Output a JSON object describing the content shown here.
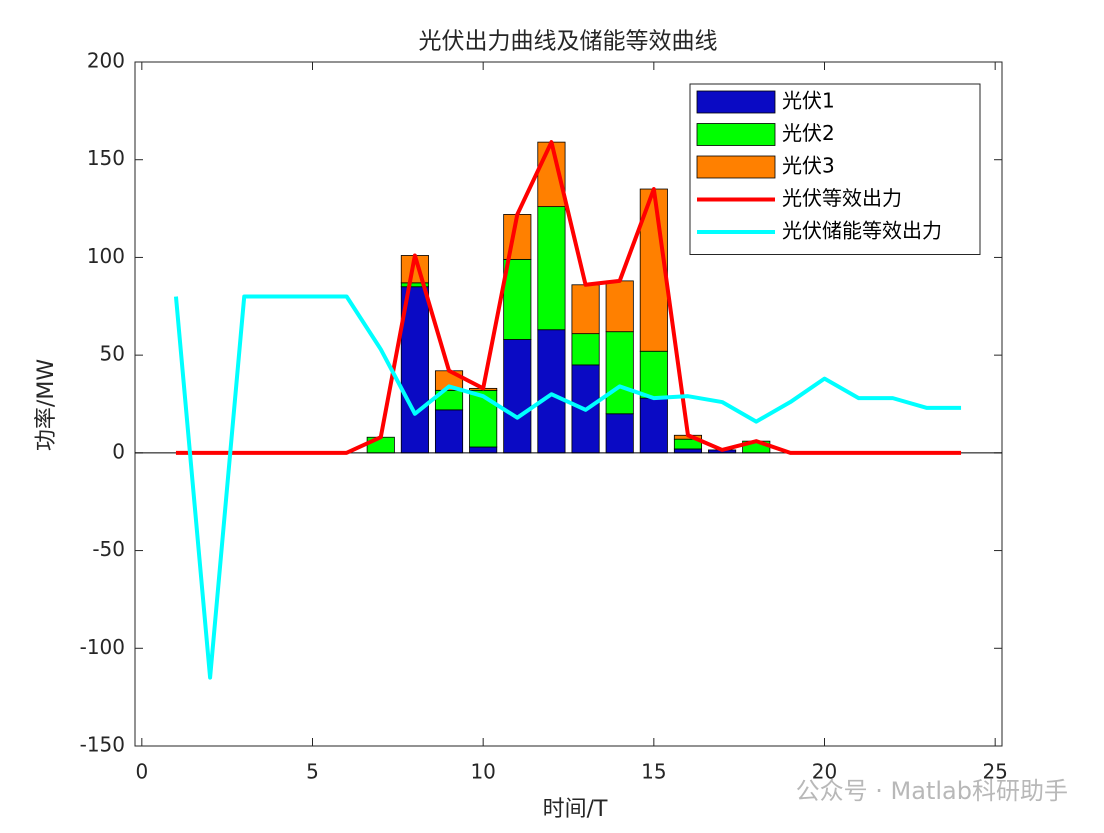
{
  "chart_data": {
    "type": "bar",
    "stacked": true,
    "title": "光伏出力曲线及储能等效曲线",
    "xlabel": "时间/T",
    "ylabel": "功率/MW",
    "watermark": "公众号 · Matlab科研助手",
    "x": [
      1,
      2,
      3,
      4,
      5,
      6,
      7,
      8,
      9,
      10,
      11,
      12,
      13,
      14,
      15,
      16,
      17,
      18,
      19,
      20,
      21,
      22,
      23,
      24
    ],
    "series": [
      {
        "name": "光伏1",
        "kind": "bar",
        "color": "#0a0ac4",
        "values": [
          0,
          0,
          0,
          0,
          0,
          0,
          0,
          85,
          22,
          3,
          58,
          63,
          45,
          20,
          28,
          2,
          1.5,
          0,
          0,
          0,
          0,
          0,
          0,
          0
        ]
      },
      {
        "name": "光伏2",
        "kind": "bar",
        "color": "#00ff00",
        "values": [
          0,
          0,
          0,
          0,
          0,
          0,
          8,
          2,
          10,
          29,
          41,
          63,
          16,
          42,
          24,
          5,
          0,
          6,
          0,
          0,
          0,
          0,
          0,
          0
        ]
      },
      {
        "name": "光伏3",
        "kind": "bar",
        "color": "#ff8000",
        "values": [
          0,
          0,
          0,
          0,
          0,
          0,
          0,
          14,
          10,
          1,
          23,
          33,
          25,
          26,
          83,
          2,
          0,
          0,
          0,
          0,
          0,
          0,
          0,
          0
        ]
      },
      {
        "name": "光伏等效出力",
        "kind": "line",
        "color": "#ff0000",
        "values": [
          0,
          0,
          0,
          0,
          0,
          0,
          8,
          101,
          42,
          33,
          122,
          159,
          86,
          88,
          135,
          9,
          1.5,
          6,
          0,
          0,
          0,
          0,
          0,
          0
        ]
      },
      {
        "name": "光伏储能等效出力",
        "kind": "line",
        "color": "#00ffff",
        "values": [
          80,
          -115,
          80,
          80,
          80,
          80,
          53,
          20,
          34,
          29,
          18,
          30,
          22,
          34,
          28,
          29,
          26,
          16,
          26,
          38,
          28,
          28,
          23,
          23
        ]
      }
    ],
    "xlim": [
      -0.2,
      25.2
    ],
    "xticks": [
      0,
      5,
      10,
      15,
      20,
      25
    ],
    "ylim": [
      -150,
      200
    ],
    "yticks": [
      -150,
      -100,
      -50,
      0,
      50,
      100,
      150,
      200
    ],
    "legend": "upper right"
  }
}
